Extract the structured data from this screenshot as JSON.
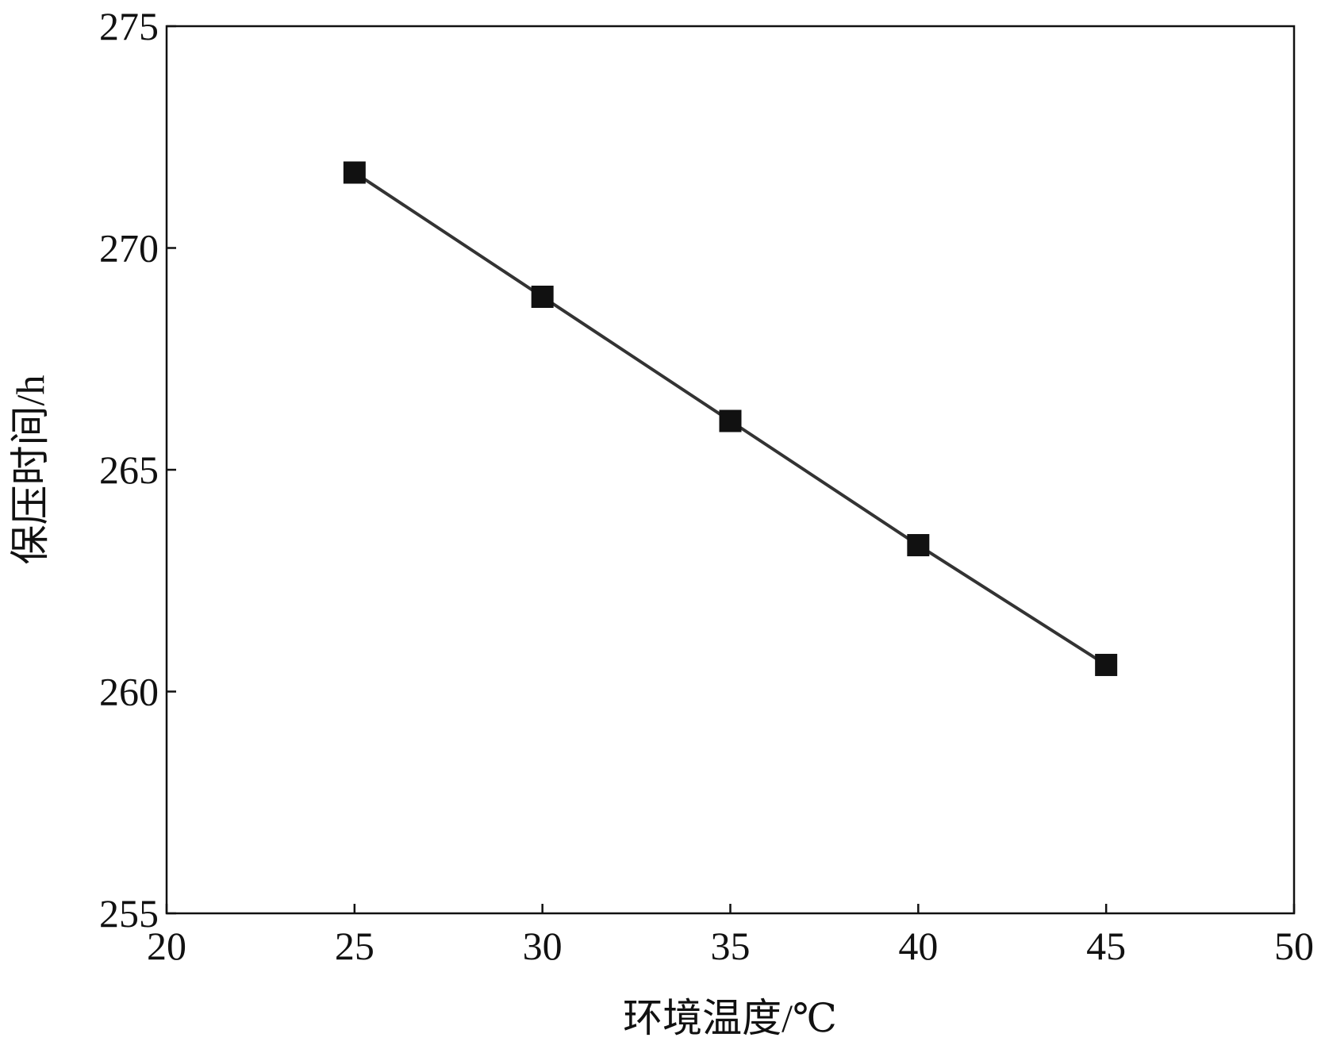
{
  "chart_data": {
    "type": "line",
    "x_label": "环境温度/℃",
    "y_label": "保压时间/h",
    "x": [
      25,
      30,
      35,
      40,
      45
    ],
    "series": [
      {
        "color": "#111111",
        "values": [
          271.7,
          268.9,
          266.1,
          263.3,
          260.6
        ]
      }
    ],
    "xlim": [
      20,
      50
    ],
    "xticks": [
      20,
      25,
      30,
      35,
      40,
      45,
      50
    ],
    "ylim": [
      255,
      275
    ],
    "yticks": [
      255,
      260,
      265,
      270,
      275
    ],
    "grid": false
  }
}
